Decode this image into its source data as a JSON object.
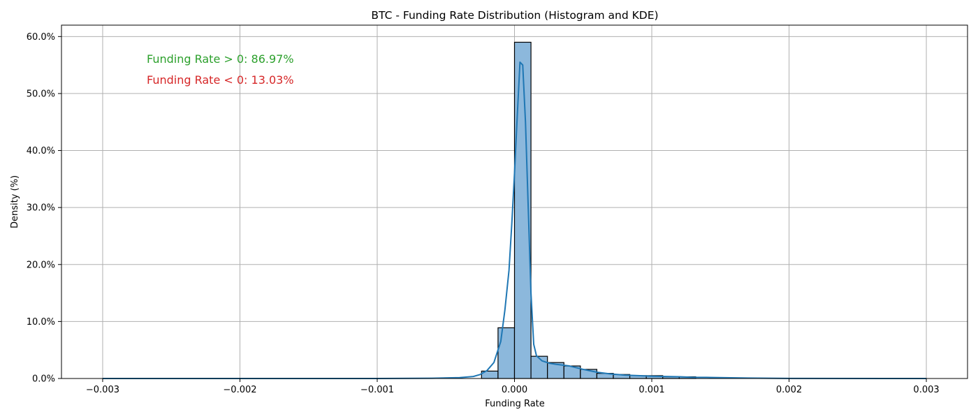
{
  "chart_data": {
    "type": "bar",
    "title": "BTC - Funding Rate Distribution (Histogram and KDE)",
    "xlabel": "Funding Rate",
    "ylabel": "Density (%)",
    "xlim": [
      -0.0033,
      0.0033
    ],
    "ylim": [
      0,
      62
    ],
    "grid": true,
    "x_ticks": [
      -0.003,
      -0.002,
      -0.001,
      0.0,
      0.001,
      0.002,
      0.003
    ],
    "x_tick_labels": [
      "−0.003",
      "−0.002",
      "−0.001",
      "0.000",
      "0.001",
      "0.002",
      "0.003"
    ],
    "y_ticks": [
      0,
      10,
      20,
      30,
      40,
      50,
      60
    ],
    "y_tick_labels": [
      "0.0%",
      "10.0%",
      "20.0%",
      "30.0%",
      "40.0%",
      "50.0%",
      "60.0%"
    ],
    "histogram": {
      "bin_width": 0.00012,
      "bins": [
        {
          "x0": -0.00024,
          "x1": -0.00012,
          "value": 1.3
        },
        {
          "x0": -0.00012,
          "x1": 0.0,
          "value": 8.9
        },
        {
          "x0": 0.0,
          "x1": 0.00012,
          "value": 59.0
        },
        {
          "x0": 0.00012,
          "x1": 0.00024,
          "value": 3.9
        },
        {
          "x0": 0.00024,
          "x1": 0.00036,
          "value": 2.8
        },
        {
          "x0": 0.00036,
          "x1": 0.00048,
          "value": 2.2
        },
        {
          "x0": 0.00048,
          "x1": 0.0006,
          "value": 1.6
        },
        {
          "x0": 0.0006,
          "x1": 0.00072,
          "value": 0.9
        },
        {
          "x0": 0.00072,
          "x1": 0.00084,
          "value": 0.7
        },
        {
          "x0": 0.00084,
          "x1": 0.00096,
          "value": 0.5
        },
        {
          "x0": 0.00096,
          "x1": 0.00108,
          "value": 0.5
        },
        {
          "x0": 0.00108,
          "x1": 0.0012,
          "value": 0.3
        },
        {
          "x0": 0.0012,
          "x1": 0.00132,
          "value": 0.3
        }
      ]
    },
    "kde": {
      "x": [
        -0.003,
        -0.002,
        -0.001,
        -0.0006,
        -0.0004,
        -0.0003,
        -0.00025,
        -0.0002,
        -0.00015,
        -0.0001,
        -7e-05,
        -4e-05,
        -2e-05,
        0.0,
        2e-05,
        4e-05,
        6e-05,
        8e-05,
        0.0001,
        0.00012,
        0.00014,
        0.00016,
        0.0002,
        0.00025,
        0.0003,
        0.0004,
        0.0005,
        0.0006,
        0.0007,
        0.0008,
        0.0009,
        0.001,
        0.0011,
        0.0012,
        0.0013,
        0.0014,
        0.0015,
        0.0017,
        0.002,
        0.003
      ],
      "y": [
        0.0,
        0.0,
        0.0,
        0.05,
        0.15,
        0.35,
        0.7,
        1.4,
        2.8,
        6.5,
        12.0,
        19.0,
        27.0,
        36.0,
        46.0,
        55.5,
        55.0,
        45.0,
        30.0,
        15.0,
        6.0,
        4.0,
        3.1,
        2.7,
        2.5,
        2.2,
        1.6,
        1.1,
        0.8,
        0.6,
        0.5,
        0.4,
        0.35,
        0.3,
        0.2,
        0.2,
        0.15,
        0.08,
        0.02,
        0.0
      ]
    },
    "colors": {
      "bar_fill": "#8cb8dc",
      "bar_edge": "#000000",
      "kde_line": "#1f77b4",
      "grid": "#b0b0b0",
      "positive_text": "#2ca02c",
      "negative_text": "#d62728"
    },
    "annotations": [
      {
        "text": "Funding Rate > 0: 86.97%",
        "color": "#2ca02c"
      },
      {
        "text": "Funding Rate < 0: 13.03%",
        "color": "#d62728"
      }
    ]
  }
}
